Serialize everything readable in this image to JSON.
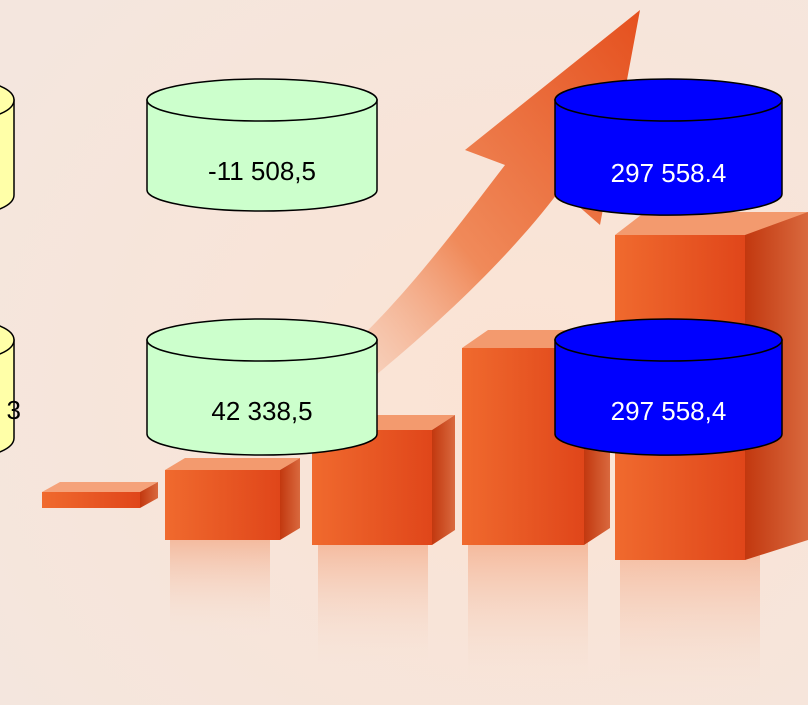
{
  "colors": {
    "background": "#f6e6dc",
    "yellow_cylinder": "#ffffa8",
    "green_cylinder": "#ccffcc",
    "blue_cylinder": "#0000ff",
    "outline": "#000000",
    "bar_orange": "#ee5a26",
    "arrow_orange": "#ea6a36"
  },
  "background_art": {
    "icon": "growth-bar-chart-with-arrow-icon"
  },
  "cylinders": {
    "yellow_top": {
      "value": ""
    },
    "yellow_bottom": {
      "value": "3"
    },
    "green_top": {
      "value": "-11 508,5"
    },
    "green_bottom": {
      "value": "42 338,5"
    },
    "blue_top": {
      "value": "297 558.4"
    },
    "blue_bottom": {
      "value": "297 558,4"
    }
  }
}
